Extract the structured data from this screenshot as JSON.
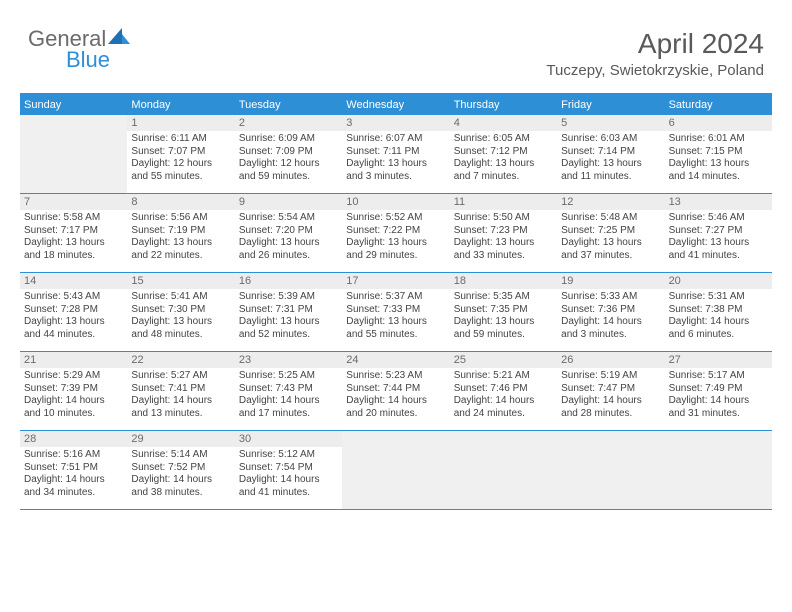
{
  "logo": {
    "text1": "General",
    "text2": "Blue"
  },
  "title": "April 2024",
  "location": "Tuczepy, Swietokrzyskie, Poland",
  "colors": {
    "accent": "#2d8fd5",
    "header_bg": "#2d8fd5",
    "header_text": "#ffffff",
    "daynum_bg": "#ededed",
    "text_muted": "#6b6b6b",
    "body_text": "#444444",
    "empty_bg": "#f0f0f0",
    "border": "#2d8fd5"
  },
  "day_labels": [
    "Sunday",
    "Monday",
    "Tuesday",
    "Wednesday",
    "Thursday",
    "Friday",
    "Saturday"
  ],
  "weeks": [
    [
      {
        "empty": true
      },
      {
        "num": "1",
        "sunrise": "Sunrise: 6:11 AM",
        "sunset": "Sunset: 7:07 PM",
        "d1": "Daylight: 12 hours",
        "d2": "and 55 minutes."
      },
      {
        "num": "2",
        "sunrise": "Sunrise: 6:09 AM",
        "sunset": "Sunset: 7:09 PM",
        "d1": "Daylight: 12 hours",
        "d2": "and 59 minutes."
      },
      {
        "num": "3",
        "sunrise": "Sunrise: 6:07 AM",
        "sunset": "Sunset: 7:11 PM",
        "d1": "Daylight: 13 hours",
        "d2": "and 3 minutes."
      },
      {
        "num": "4",
        "sunrise": "Sunrise: 6:05 AM",
        "sunset": "Sunset: 7:12 PM",
        "d1": "Daylight: 13 hours",
        "d2": "and 7 minutes."
      },
      {
        "num": "5",
        "sunrise": "Sunrise: 6:03 AM",
        "sunset": "Sunset: 7:14 PM",
        "d1": "Daylight: 13 hours",
        "d2": "and 11 minutes."
      },
      {
        "num": "6",
        "sunrise": "Sunrise: 6:01 AM",
        "sunset": "Sunset: 7:15 PM",
        "d1": "Daylight: 13 hours",
        "d2": "and 14 minutes."
      }
    ],
    [
      {
        "num": "7",
        "sunrise": "Sunrise: 5:58 AM",
        "sunset": "Sunset: 7:17 PM",
        "d1": "Daylight: 13 hours",
        "d2": "and 18 minutes."
      },
      {
        "num": "8",
        "sunrise": "Sunrise: 5:56 AM",
        "sunset": "Sunset: 7:19 PM",
        "d1": "Daylight: 13 hours",
        "d2": "and 22 minutes."
      },
      {
        "num": "9",
        "sunrise": "Sunrise: 5:54 AM",
        "sunset": "Sunset: 7:20 PM",
        "d1": "Daylight: 13 hours",
        "d2": "and 26 minutes."
      },
      {
        "num": "10",
        "sunrise": "Sunrise: 5:52 AM",
        "sunset": "Sunset: 7:22 PM",
        "d1": "Daylight: 13 hours",
        "d2": "and 29 minutes."
      },
      {
        "num": "11",
        "sunrise": "Sunrise: 5:50 AM",
        "sunset": "Sunset: 7:23 PM",
        "d1": "Daylight: 13 hours",
        "d2": "and 33 minutes."
      },
      {
        "num": "12",
        "sunrise": "Sunrise: 5:48 AM",
        "sunset": "Sunset: 7:25 PM",
        "d1": "Daylight: 13 hours",
        "d2": "and 37 minutes."
      },
      {
        "num": "13",
        "sunrise": "Sunrise: 5:46 AM",
        "sunset": "Sunset: 7:27 PM",
        "d1": "Daylight: 13 hours",
        "d2": "and 41 minutes."
      }
    ],
    [
      {
        "num": "14",
        "sunrise": "Sunrise: 5:43 AM",
        "sunset": "Sunset: 7:28 PM",
        "d1": "Daylight: 13 hours",
        "d2": "and 44 minutes."
      },
      {
        "num": "15",
        "sunrise": "Sunrise: 5:41 AM",
        "sunset": "Sunset: 7:30 PM",
        "d1": "Daylight: 13 hours",
        "d2": "and 48 minutes."
      },
      {
        "num": "16",
        "sunrise": "Sunrise: 5:39 AM",
        "sunset": "Sunset: 7:31 PM",
        "d1": "Daylight: 13 hours",
        "d2": "and 52 minutes."
      },
      {
        "num": "17",
        "sunrise": "Sunrise: 5:37 AM",
        "sunset": "Sunset: 7:33 PM",
        "d1": "Daylight: 13 hours",
        "d2": "and 55 minutes."
      },
      {
        "num": "18",
        "sunrise": "Sunrise: 5:35 AM",
        "sunset": "Sunset: 7:35 PM",
        "d1": "Daylight: 13 hours",
        "d2": "and 59 minutes."
      },
      {
        "num": "19",
        "sunrise": "Sunrise: 5:33 AM",
        "sunset": "Sunset: 7:36 PM",
        "d1": "Daylight: 14 hours",
        "d2": "and 3 minutes."
      },
      {
        "num": "20",
        "sunrise": "Sunrise: 5:31 AM",
        "sunset": "Sunset: 7:38 PM",
        "d1": "Daylight: 14 hours",
        "d2": "and 6 minutes."
      }
    ],
    [
      {
        "num": "21",
        "sunrise": "Sunrise: 5:29 AM",
        "sunset": "Sunset: 7:39 PM",
        "d1": "Daylight: 14 hours",
        "d2": "and 10 minutes."
      },
      {
        "num": "22",
        "sunrise": "Sunrise: 5:27 AM",
        "sunset": "Sunset: 7:41 PM",
        "d1": "Daylight: 14 hours",
        "d2": "and 13 minutes."
      },
      {
        "num": "23",
        "sunrise": "Sunrise: 5:25 AM",
        "sunset": "Sunset: 7:43 PM",
        "d1": "Daylight: 14 hours",
        "d2": "and 17 minutes."
      },
      {
        "num": "24",
        "sunrise": "Sunrise: 5:23 AM",
        "sunset": "Sunset: 7:44 PM",
        "d1": "Daylight: 14 hours",
        "d2": "and 20 minutes."
      },
      {
        "num": "25",
        "sunrise": "Sunrise: 5:21 AM",
        "sunset": "Sunset: 7:46 PM",
        "d1": "Daylight: 14 hours",
        "d2": "and 24 minutes."
      },
      {
        "num": "26",
        "sunrise": "Sunrise: 5:19 AM",
        "sunset": "Sunset: 7:47 PM",
        "d1": "Daylight: 14 hours",
        "d2": "and 28 minutes."
      },
      {
        "num": "27",
        "sunrise": "Sunrise: 5:17 AM",
        "sunset": "Sunset: 7:49 PM",
        "d1": "Daylight: 14 hours",
        "d2": "and 31 minutes."
      }
    ],
    [
      {
        "num": "28",
        "sunrise": "Sunrise: 5:16 AM",
        "sunset": "Sunset: 7:51 PM",
        "d1": "Daylight: 14 hours",
        "d2": "and 34 minutes."
      },
      {
        "num": "29",
        "sunrise": "Sunrise: 5:14 AM",
        "sunset": "Sunset: 7:52 PM",
        "d1": "Daylight: 14 hours",
        "d2": "and 38 minutes."
      },
      {
        "num": "30",
        "sunrise": "Sunrise: 5:12 AM",
        "sunset": "Sunset: 7:54 PM",
        "d1": "Daylight: 14 hours",
        "d2": "and 41 minutes."
      },
      {
        "empty": true
      },
      {
        "empty": true
      },
      {
        "empty": true
      },
      {
        "empty": true
      }
    ]
  ]
}
